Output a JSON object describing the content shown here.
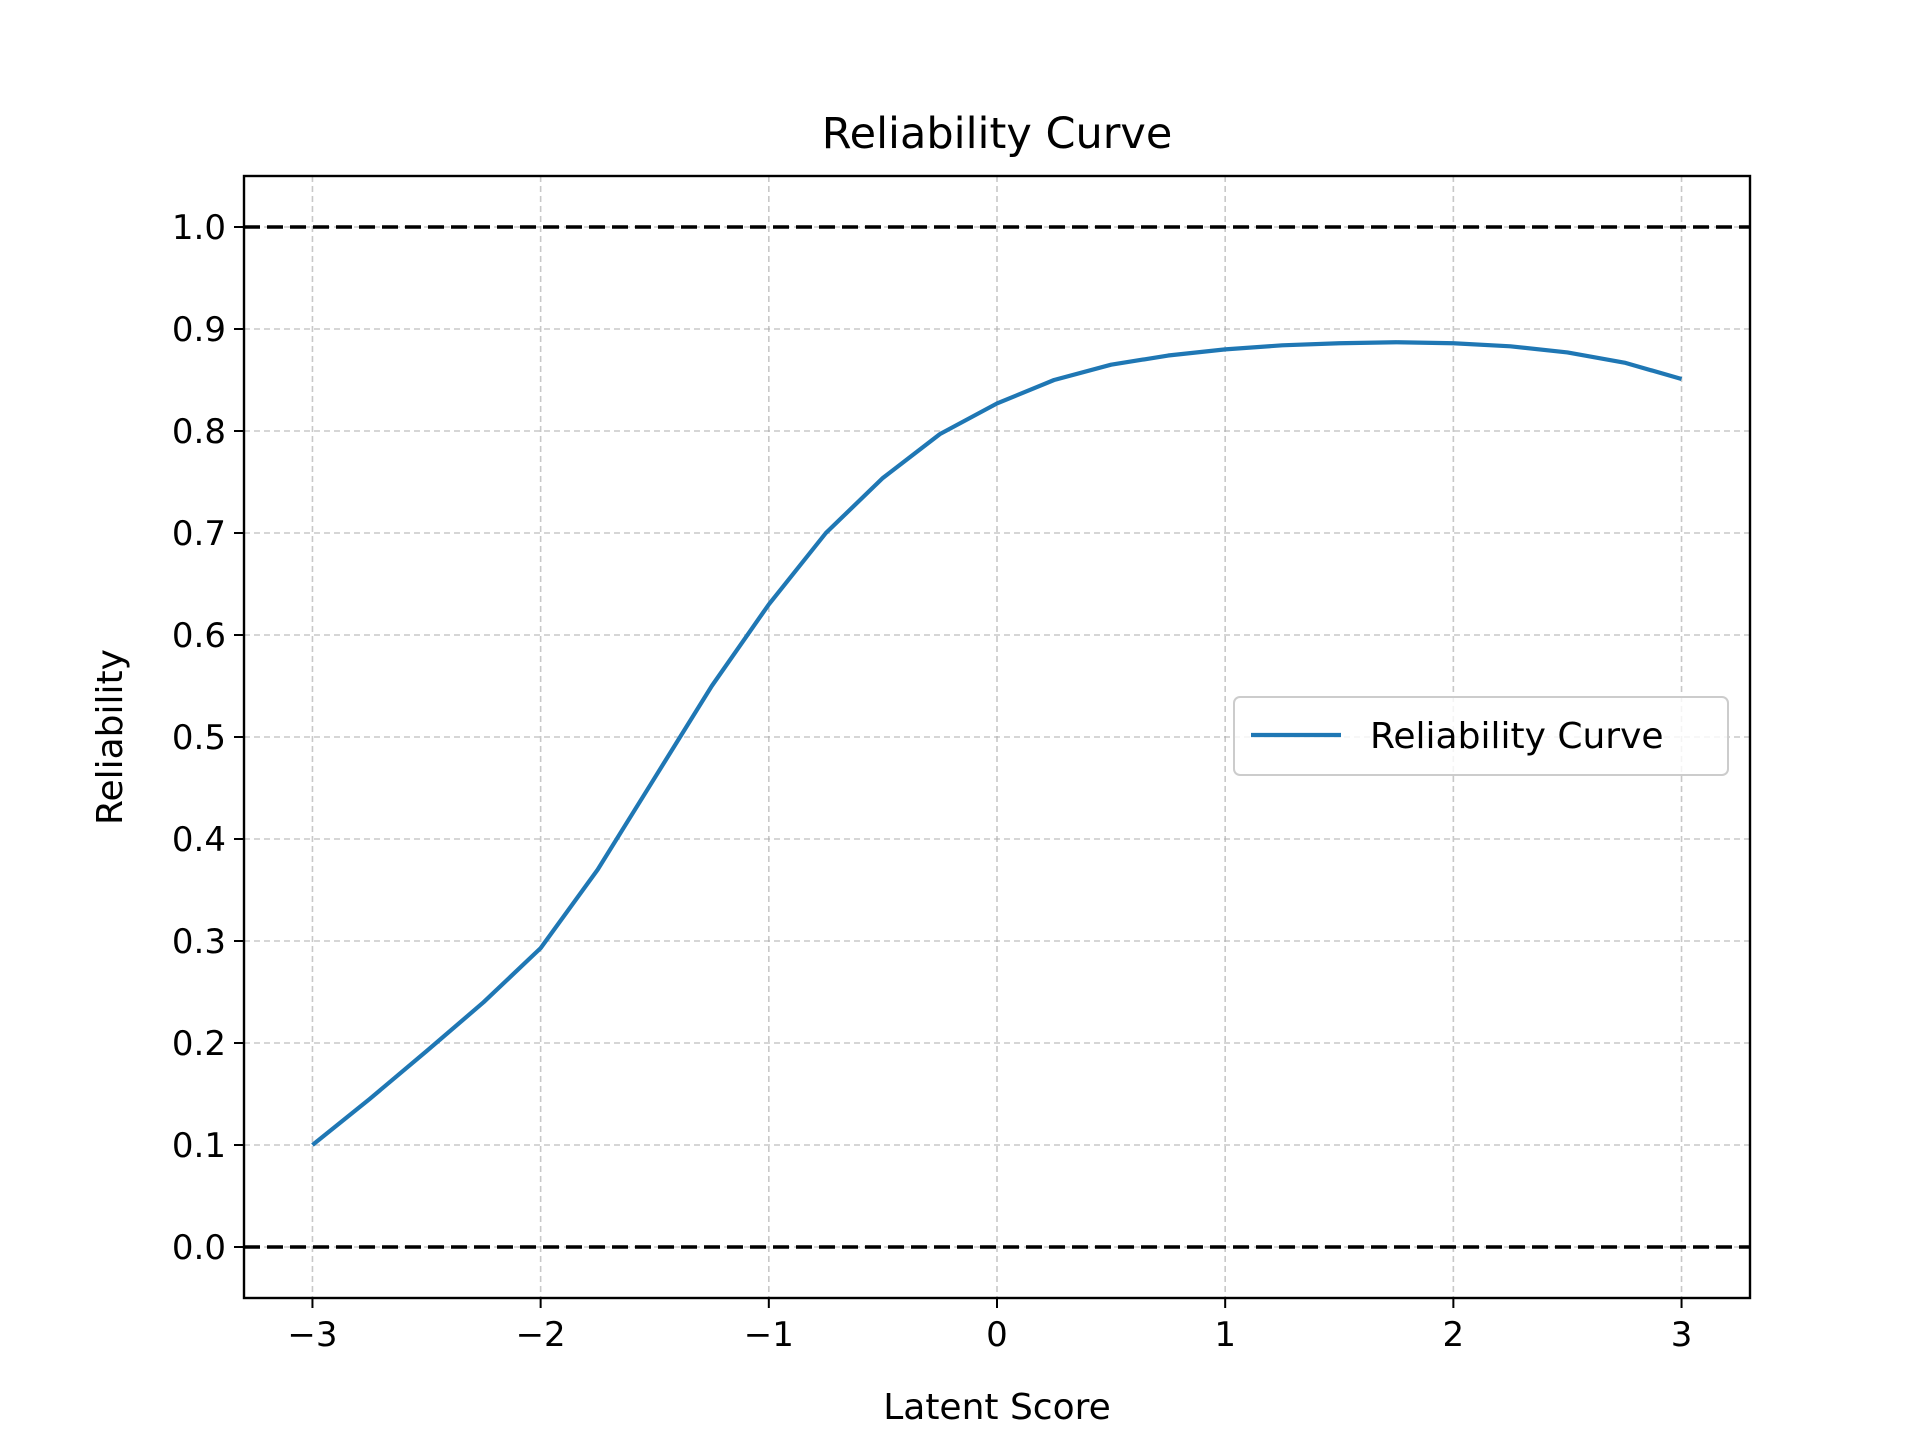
{
  "chart_data": {
    "type": "line",
    "title": "Reliability Curve",
    "xlabel": "Latent Score",
    "ylabel": "Reliability",
    "xlim": [
      -3.3,
      3.3
    ],
    "ylim": [
      -0.05,
      1.05
    ],
    "x_ticks": [
      -3,
      -2,
      -1,
      0,
      1,
      2,
      3
    ],
    "x_tick_labels": [
      "−3",
      "−2",
      "−1",
      "0",
      "1",
      "2",
      "3"
    ],
    "y_ticks": [
      0.0,
      0.1,
      0.2,
      0.3,
      0.4,
      0.5,
      0.6,
      0.7,
      0.8,
      0.9,
      1.0
    ],
    "y_tick_labels": [
      "0.0",
      "0.1",
      "0.2",
      "0.3",
      "0.4",
      "0.5",
      "0.6",
      "0.7",
      "0.8",
      "0.9",
      "1.0"
    ],
    "grid": true,
    "legend_position": "center-right",
    "reference_lines": [
      {
        "y": 1.0,
        "style": "dashed",
        "color": "#000000"
      },
      {
        "y": 0.0,
        "style": "dashed",
        "color": "#000000"
      }
    ],
    "series": [
      {
        "name": "Reliability Curve",
        "color": "#1f77b4",
        "x": [
          -3.0,
          -2.75,
          -2.5,
          -2.25,
          -2.0,
          -1.75,
          -1.5,
          -1.25,
          -1.0,
          -0.75,
          -0.5,
          -0.25,
          0.0,
          0.25,
          0.5,
          0.75,
          1.0,
          1.25,
          1.5,
          1.75,
          2.0,
          2.25,
          2.5,
          2.75,
          3.0
        ],
        "y": [
          0.1,
          0.145,
          0.192,
          0.24,
          0.293,
          0.37,
          0.46,
          0.55,
          0.63,
          0.7,
          0.754,
          0.797,
          0.827,
          0.85,
          0.865,
          0.874,
          0.88,
          0.884,
          0.886,
          0.887,
          0.886,
          0.883,
          0.877,
          0.867,
          0.851
        ]
      }
    ]
  }
}
